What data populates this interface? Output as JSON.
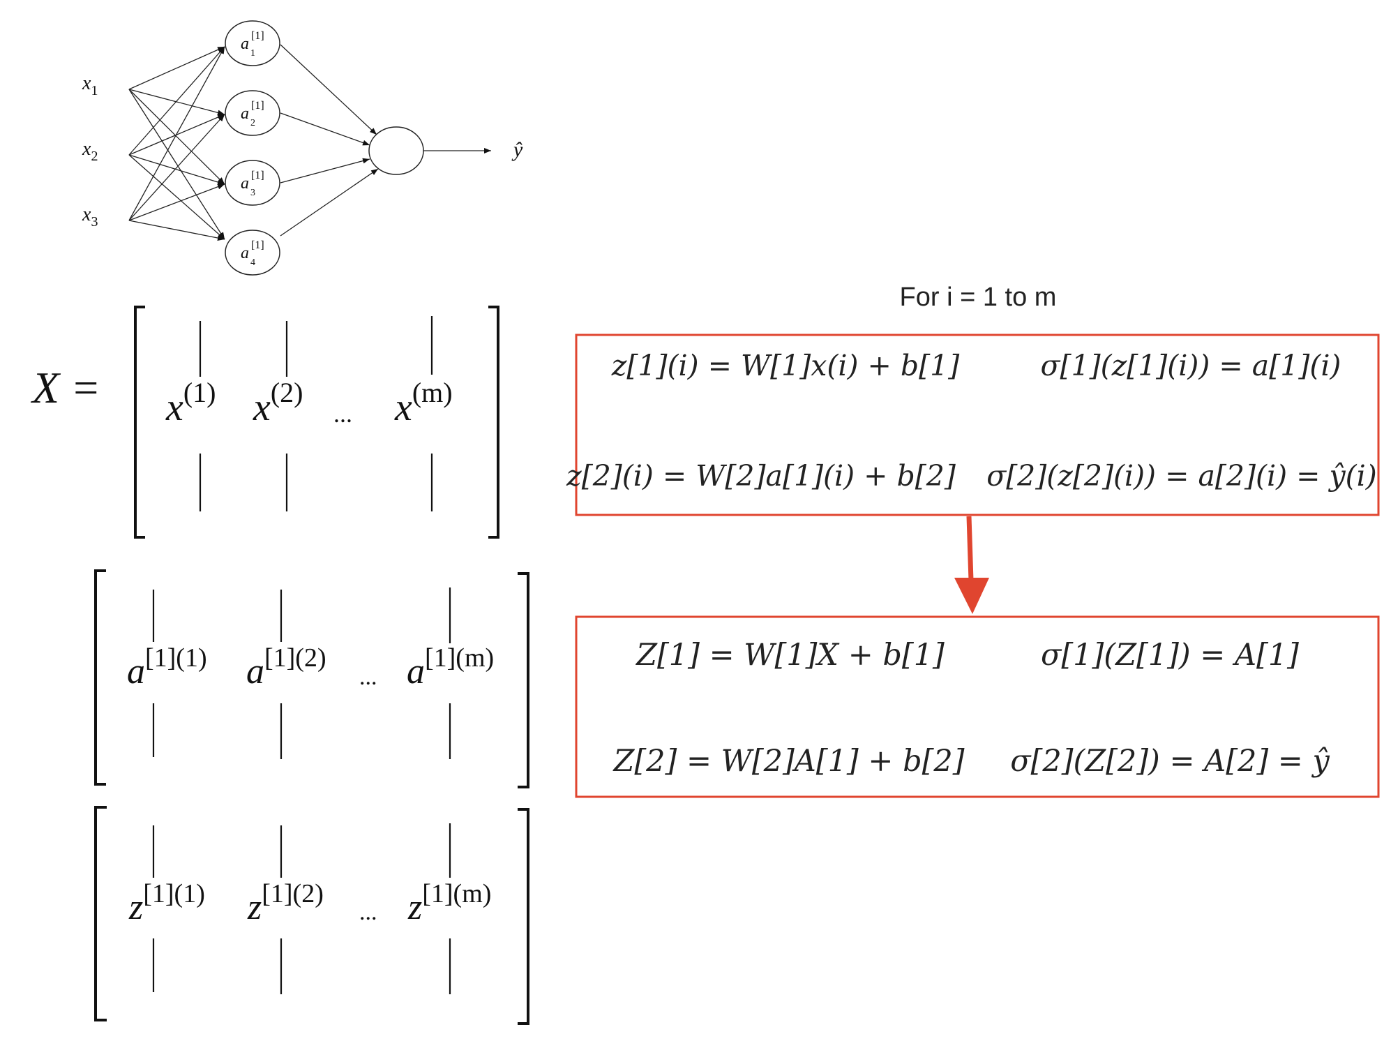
{
  "network": {
    "inputs": [
      {
        "base": "x",
        "sub": "1"
      },
      {
        "base": "x",
        "sub": "2"
      },
      {
        "base": "x",
        "sub": "3"
      }
    ],
    "hidden": [
      {
        "base": "a",
        "sup": "[1]",
        "sub": "1"
      },
      {
        "base": "a",
        "sup": "[1]",
        "sub": "2"
      },
      {
        "base": "a",
        "sup": "[1]",
        "sub": "3"
      },
      {
        "base": "a",
        "sup": "[1]",
        "sub": "4"
      }
    ],
    "output_label": "ŷ"
  },
  "matrices": {
    "x": {
      "lhs": "X =",
      "columns": [
        {
          "base": "x",
          "sup": "(1)"
        },
        {
          "base": "x",
          "sup": "(2)"
        },
        {
          "base": "x",
          "sup": "(m)"
        }
      ],
      "ellipsis": "..."
    },
    "a": {
      "columns": [
        {
          "base": "a",
          "sup": "[1](1)"
        },
        {
          "base": "a",
          "sup": "[1](2)"
        },
        {
          "base": "a",
          "sup": "[1](m)"
        }
      ],
      "ellipsis": "..."
    },
    "z": {
      "columns": [
        {
          "base": "z",
          "sup": "[1](1)"
        },
        {
          "base": "z",
          "sup": "[1](2)"
        },
        {
          "base": "z",
          "sup": "[1](m)"
        }
      ],
      "ellipsis": "..."
    }
  },
  "loop": {
    "title": "For i = 1 to m",
    "border_color": "#e0452f",
    "arrow_color": "#e0452f"
  },
  "equations_loop": {
    "z1": "z[1](i) = W[1]x(i) + b[1]",
    "a1": "σ[1](z[1](i)) = a[1](i)",
    "z2": "z[2](i) = W[2]a[1](i) + b[2]",
    "a2": "σ[2](z[2](i)) = a[2](i) = ŷ(i)"
  },
  "equations_vectorized": {
    "z1": "Z[1] = W[1]X + b[1]",
    "a1": "σ[1](Z[1]) = A[1]",
    "z2": "Z[2] = W[2]A[1] + b[2]",
    "a2": "σ[2](Z[2]) = A[2] = ŷ"
  }
}
